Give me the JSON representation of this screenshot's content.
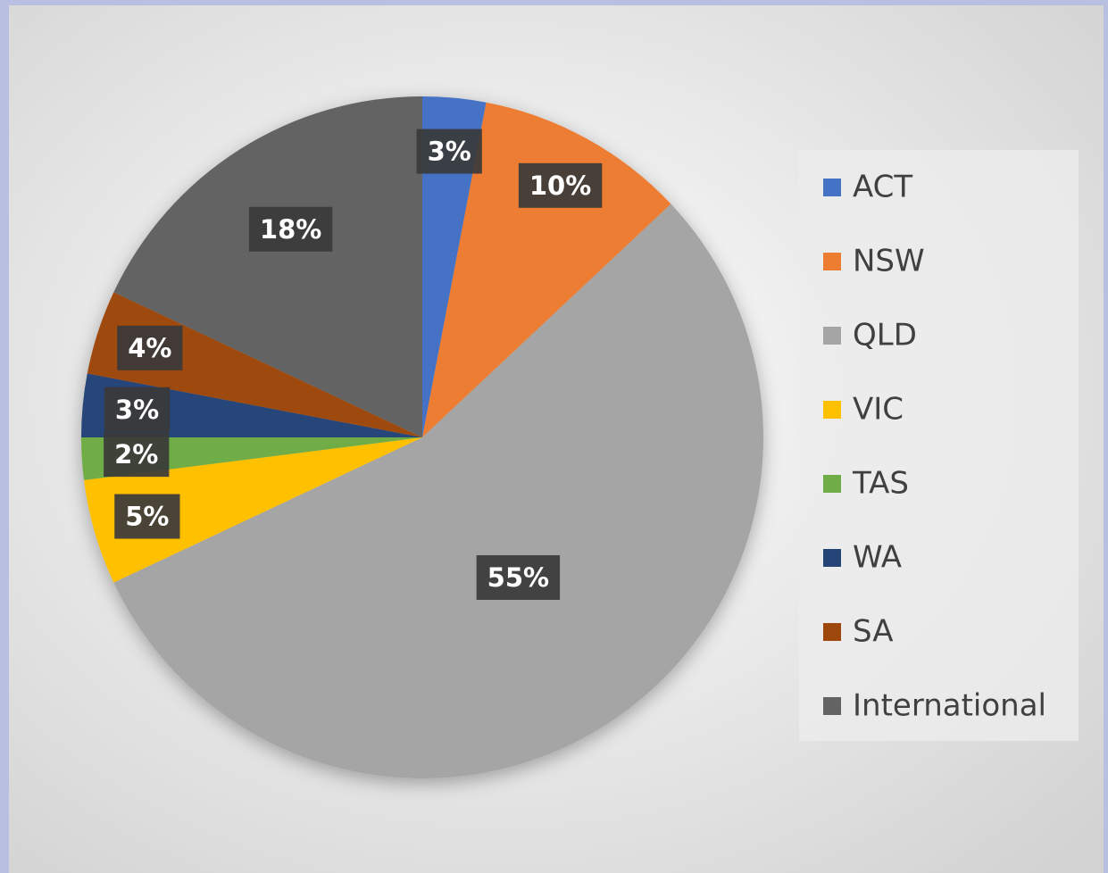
{
  "chart_data": {
    "type": "pie",
    "categories": [
      "ACT",
      "NSW",
      "QLD",
      "VIC",
      "TAS",
      "WA",
      "SA",
      "International"
    ],
    "values": [
      3,
      10,
      55,
      5,
      2,
      3,
      4,
      18
    ],
    "value_labels": [
      "3%",
      "10%",
      "55%",
      "5%",
      "2%",
      "3%",
      "4%",
      "18%"
    ],
    "colors": [
      "#4472c4",
      "#ed7d31",
      "#a5a5a5",
      "#ffc000",
      "#70ad47",
      "#264478",
      "#9e480e",
      "#636363"
    ],
    "legend": "right"
  }
}
